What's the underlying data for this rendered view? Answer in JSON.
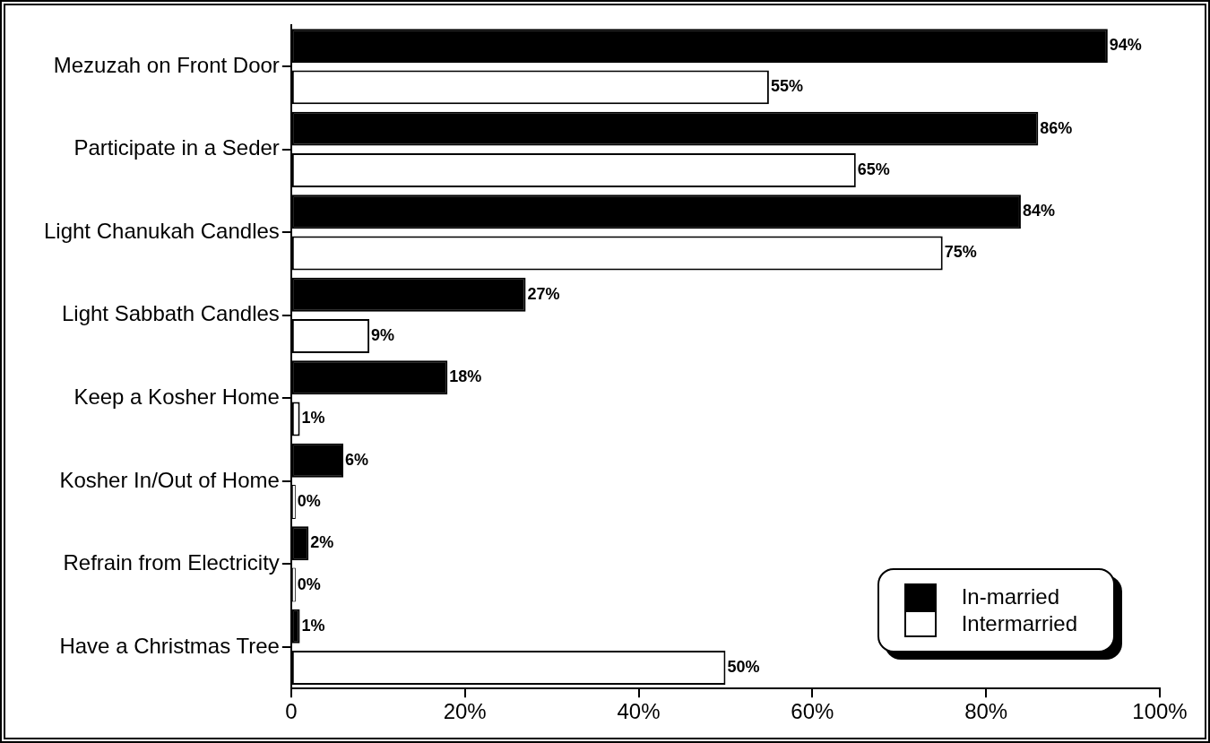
{
  "chart_data": {
    "type": "bar",
    "orientation": "horizontal",
    "categories": [
      "Mezuzah on Front Door",
      "Participate in a Seder",
      "Light Chanukah Candles",
      "Light Sabbath Candles",
      "Keep a Kosher Home",
      "Kosher In/Out of Home",
      "Refrain from Electricity",
      "Have a Christmas Tree"
    ],
    "series": [
      {
        "name": "In-married",
        "color": "#000000",
        "values": [
          94,
          86,
          84,
          27,
          18,
          6,
          2,
          1
        ],
        "value_labels": [
          "94%",
          "86%",
          "84%",
          "27%",
          "18%",
          "6%",
          "2%",
          "1%"
        ]
      },
      {
        "name": "Intermarried",
        "color": "#ffffff",
        "values": [
          55,
          65,
          75,
          9,
          1,
          0,
          0,
          50
        ],
        "value_labels": [
          "55%",
          "65%",
          "75%",
          "9%",
          "1%",
          "0%",
          "0%",
          "50%"
        ]
      }
    ],
    "xlim": [
      0,
      100
    ],
    "xticks": [
      0,
      {
        "value": 20,
        "label": "20%"
      },
      {
        "value": 40,
        "label": "40%"
      },
      {
        "value": 60,
        "label": "60%"
      },
      {
        "value": 80,
        "label": "80%"
      },
      {
        "value": 100,
        "label": "100%"
      }
    ],
    "grid": false,
    "legend": "bottom right"
  }
}
